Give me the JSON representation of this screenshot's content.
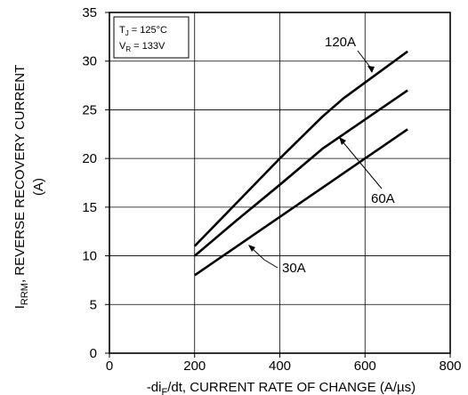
{
  "chart_data": {
    "type": "line",
    "xlabel": {
      "pre": "-di",
      "sub": "F",
      "post": "/dt, CURRENT RATE OF CHANGE (A/µs)"
    },
    "ylabel": {
      "pre": "I",
      "sub": "RRM",
      "post": ", REVERSE RECOVERY CURRENT",
      "line2": "(A)"
    },
    "xlim": [
      0,
      800
    ],
    "ylim": [
      0,
      35
    ],
    "xticks": [
      "0",
      "200",
      "400",
      "600",
      "800"
    ],
    "yticks": [
      "0",
      "5",
      "10",
      "15",
      "20",
      "25",
      "30",
      "35"
    ],
    "grid": true,
    "conditions": [
      {
        "pre": "T",
        "sub": "J",
        "post": " = 125°C"
      },
      {
        "pre": "V",
        "sub": "R",
        "post": " = 133V"
      }
    ],
    "series": [
      {
        "name": "120A",
        "points": [
          [
            200,
            11
          ],
          [
            300,
            15.5
          ],
          [
            400,
            20
          ],
          [
            500,
            24.3
          ],
          [
            550,
            26.2
          ],
          [
            700,
            31
          ]
        ]
      },
      {
        "name": "60A",
        "points": [
          [
            200,
            10
          ],
          [
            300,
            13.7
          ],
          [
            400,
            17.3
          ],
          [
            500,
            21
          ],
          [
            700,
            27
          ]
        ]
      },
      {
        "name": "30A",
        "points": [
          [
            200,
            8
          ],
          [
            700,
            23
          ]
        ]
      }
    ]
  }
}
